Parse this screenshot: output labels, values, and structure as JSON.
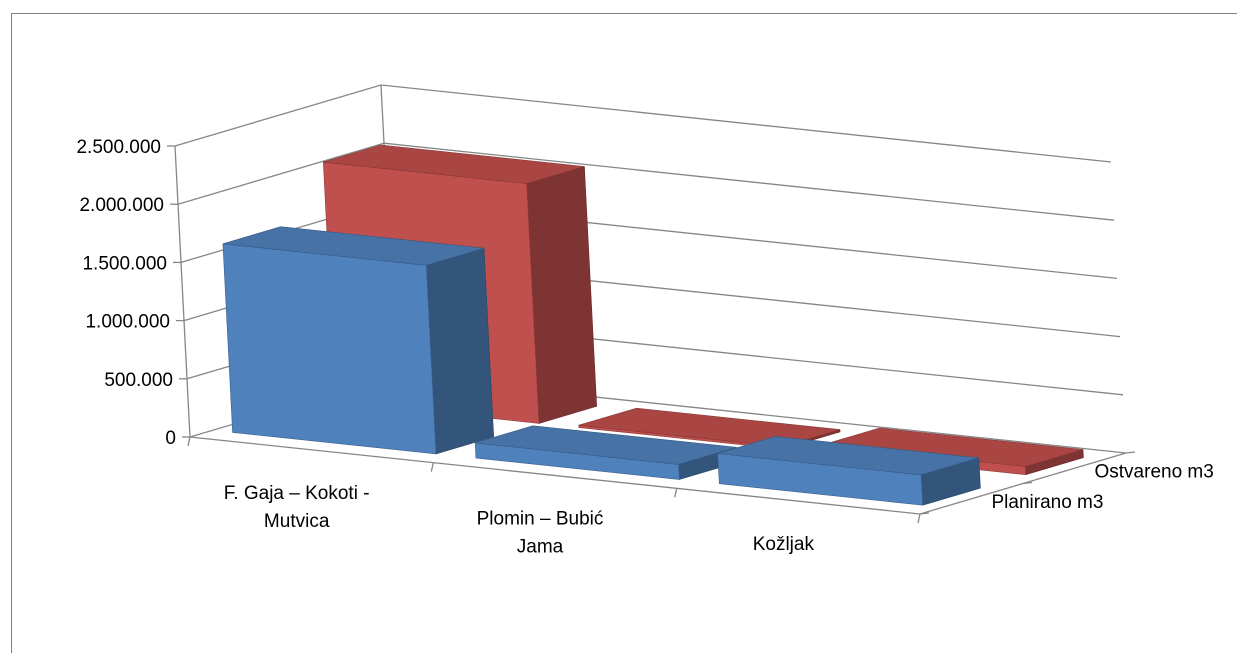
{
  "chart_data": {
    "type": "bar",
    "subtype": "3d-clustered-column",
    "title": "",
    "xlabel": "",
    "ylabel": "",
    "categories": [
      [
        "F. Gaja – Kokoti -",
        "Mutvica"
      ],
      [
        "Plomin – Bubić",
        "Jama"
      ],
      [
        "Kožljak"
      ]
    ],
    "series": [
      {
        "name": "Planirano m3",
        "values": [
          1620000,
          130000,
          260000
        ],
        "color": "#4f81bd"
      },
      {
        "name": "Ostvareno  m3",
        "values": [
          2060000,
          20000,
          70000
        ],
        "color": "#c0504d"
      }
    ],
    "ylim": [
      0,
      2500000
    ],
    "yticks": [
      0,
      500000,
      1000000,
      1500000,
      2000000,
      2500000
    ],
    "ytick_labels": [
      "0",
      "500.000",
      "1.000.000",
      "1.500.000",
      "2.000.000",
      "2.500.000"
    ],
    "grid": true,
    "legend": "depth-axis-labels-right"
  }
}
